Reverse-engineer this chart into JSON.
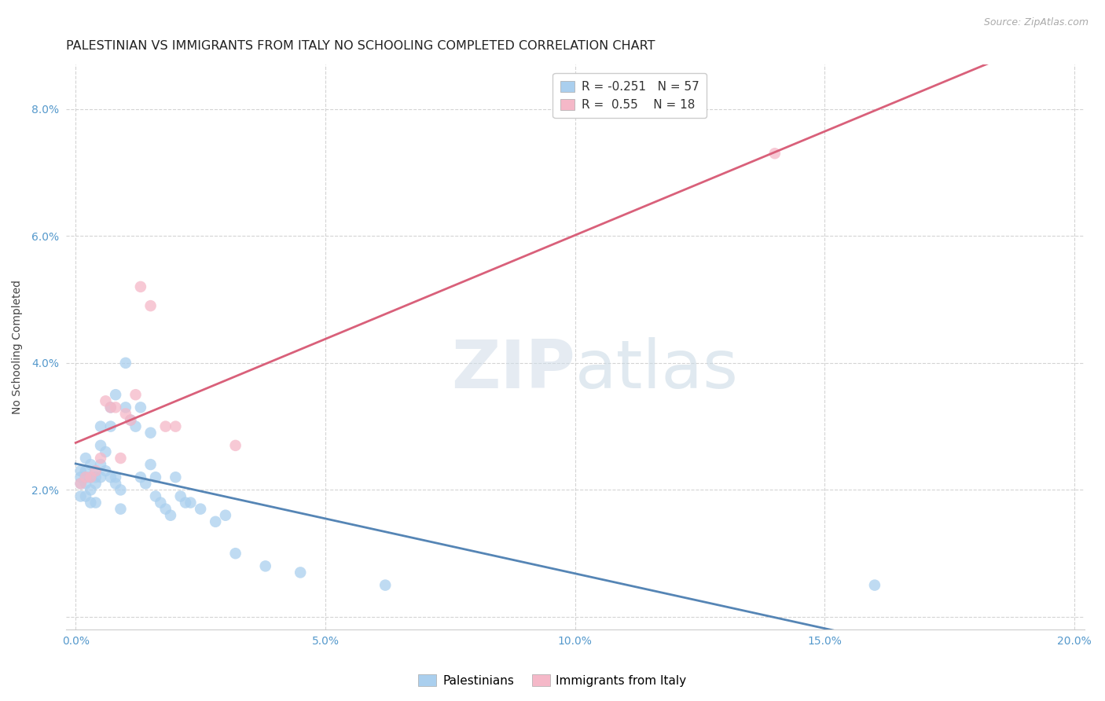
{
  "title": "PALESTINIAN VS IMMIGRANTS FROM ITALY NO SCHOOLING COMPLETED CORRELATION CHART",
  "source": "Source: ZipAtlas.com",
  "ylabel": "No Schooling Completed",
  "xlim": [
    -0.002,
    0.202
  ],
  "ylim": [
    -0.002,
    0.087
  ],
  "xticks": [
    0.0,
    0.05,
    0.1,
    0.15,
    0.2
  ],
  "yticks": [
    0.0,
    0.02,
    0.04,
    0.06,
    0.08
  ],
  "ytick_labels": [
    "",
    "2.0%",
    "4.0%",
    "6.0%",
    "8.0%"
  ],
  "xtick_labels": [
    "0.0%",
    "5.0%",
    "10.0%",
    "15.0%",
    "20.0%"
  ],
  "palestinians_x": [
    0.001,
    0.001,
    0.001,
    0.001,
    0.002,
    0.002,
    0.002,
    0.002,
    0.002,
    0.003,
    0.003,
    0.003,
    0.003,
    0.004,
    0.004,
    0.004,
    0.004,
    0.005,
    0.005,
    0.005,
    0.005,
    0.006,
    0.006,
    0.007,
    0.007,
    0.007,
    0.008,
    0.008,
    0.008,
    0.009,
    0.009,
    0.01,
    0.01,
    0.011,
    0.012,
    0.013,
    0.013,
    0.014,
    0.015,
    0.015,
    0.016,
    0.016,
    0.017,
    0.018,
    0.019,
    0.02,
    0.021,
    0.022,
    0.023,
    0.025,
    0.028,
    0.03,
    0.032,
    0.038,
    0.045,
    0.062,
    0.16
  ],
  "palestinians_y": [
    0.023,
    0.022,
    0.021,
    0.019,
    0.025,
    0.023,
    0.022,
    0.021,
    0.019,
    0.024,
    0.022,
    0.02,
    0.018,
    0.023,
    0.022,
    0.021,
    0.018,
    0.03,
    0.027,
    0.024,
    0.022,
    0.026,
    0.023,
    0.033,
    0.03,
    0.022,
    0.035,
    0.022,
    0.021,
    0.02,
    0.017,
    0.04,
    0.033,
    0.031,
    0.03,
    0.033,
    0.022,
    0.021,
    0.029,
    0.024,
    0.022,
    0.019,
    0.018,
    0.017,
    0.016,
    0.022,
    0.019,
    0.018,
    0.018,
    0.017,
    0.015,
    0.016,
    0.01,
    0.008,
    0.007,
    0.005,
    0.005
  ],
  "italy_x": [
    0.001,
    0.002,
    0.003,
    0.004,
    0.005,
    0.006,
    0.007,
    0.008,
    0.009,
    0.01,
    0.011,
    0.012,
    0.013,
    0.015,
    0.018,
    0.02,
    0.032,
    0.14
  ],
  "italy_y": [
    0.021,
    0.022,
    0.022,
    0.023,
    0.025,
    0.034,
    0.033,
    0.033,
    0.025,
    0.032,
    0.031,
    0.035,
    0.052,
    0.049,
    0.03,
    0.03,
    0.027,
    0.073
  ],
  "blue_color": "#aacfee",
  "pink_color": "#f5b8c8",
  "blue_line_color": "#5585b5",
  "pink_line_color": "#d9607a",
  "R_palestinians": -0.251,
  "N_palestinians": 57,
  "R_italy": 0.55,
  "N_italy": 18,
  "background_color": "#ffffff",
  "grid_color": "#d0d0d0",
  "watermark_zip": "ZIP",
  "watermark_atlas": "atlas",
  "title_fontsize": 11.5,
  "axis_label_fontsize": 10,
  "tick_fontsize": 10,
  "marker_size": 110,
  "line_width": 2.0
}
